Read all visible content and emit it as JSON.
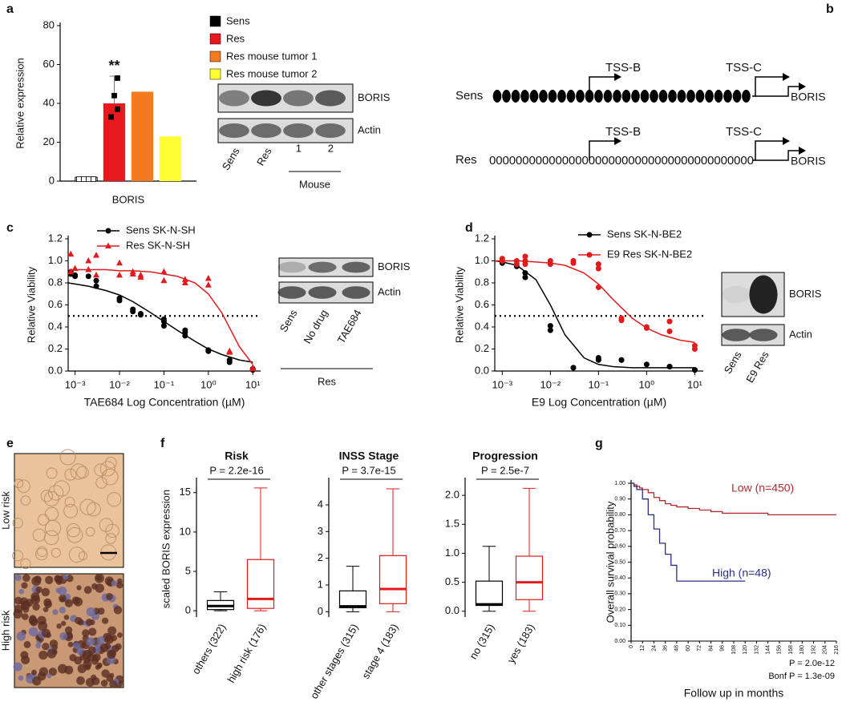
{
  "panel_labels": [
    "a",
    "b",
    "c",
    "d",
    "e",
    "f",
    "g"
  ],
  "chart_data": [
    {
      "type": "bar",
      "ylabel": "Relative expression",
      "categories": [
        "BORIS"
      ],
      "annotation": "**",
      "ylim": [
        0,
        80
      ],
      "yticks": [
        0,
        20,
        40,
        60,
        80
      ],
      "series": [
        {
          "name": "Sens",
          "color": "#000000",
          "fill": "#ffffff",
          "values": [
            2
          ],
          "points": [
            1,
            1,
            1,
            1
          ]
        },
        {
          "name": "Res",
          "color": "#e8191e",
          "fill": "#e8191e",
          "values": [
            40
          ],
          "error": [
            14
          ],
          "points": [
            53,
            44,
            37,
            33
          ]
        },
        {
          "name": "Res mouse tumor 1",
          "color": "#f47a20",
          "fill": "#f47a20",
          "values": [
            46
          ]
        },
        {
          "name": "Res mouse tumor 2",
          "color": "#ffff33",
          "fill": "#ffff33",
          "values": [
            23
          ]
        }
      ]
    },
    {
      "type": "dose-response",
      "xlabel": "TAE684 Log Concentration (µM)",
      "ylabel": "Relative Viability",
      "xscale": "log",
      "xlim": [
        0.0007,
        15
      ],
      "xticks": [
        {
          "value": 0.001,
          "label": "10⁻³"
        },
        {
          "value": 0.01,
          "label": "10⁻²"
        },
        {
          "value": 0.1,
          "label": "10⁻¹"
        },
        {
          "value": 1,
          "label": "10⁰"
        },
        {
          "value": 10,
          "label": "10¹"
        }
      ],
      "ylim": [
        0,
        1.2
      ],
      "yticks": [
        {
          "value": 0,
          "label": "0.0"
        },
        0.2,
        0.4,
        0.6,
        0.8,
        {
          "value": 1,
          "label": "1.0"
        },
        1.2
      ],
      "reference_line": 0.5,
      "series": [
        {
          "name": "Sens SK-N-SH",
          "color": "#000000",
          "marker": "circle",
          "x": [
            0.0008,
            0.0008,
            0.001,
            0.001,
            0.002,
            0.003,
            0.003,
            0.01,
            0.01,
            0.02,
            0.02,
            0.03,
            0.03,
            0.1,
            0.1,
            0.1,
            0.3,
            0.3,
            0.3,
            1,
            1,
            3,
            3,
            10,
            10
          ],
          "values": [
            0.9,
            0.88,
            0.87,
            0.86,
            0.86,
            0.82,
            0.77,
            0.66,
            0.64,
            0.56,
            0.54,
            0.52,
            0.51,
            0.47,
            0.45,
            0.41,
            0.37,
            0.35,
            0.32,
            0.19,
            0.18,
            0.1,
            0.08,
            0.02,
            0.01
          ],
          "fit_x": [
            0.0007,
            0.001,
            0.002,
            0.005,
            0.01,
            0.02,
            0.05,
            0.1,
            0.2,
            0.5,
            1,
            2,
            5,
            10
          ],
          "fit_values": [
            0.8,
            0.79,
            0.77,
            0.73,
            0.69,
            0.63,
            0.53,
            0.45,
            0.37,
            0.27,
            0.2,
            0.15,
            0.1,
            0.08
          ]
        },
        {
          "name": "Res SK-N-SH",
          "color": "#e31a1c",
          "marker": "triangle",
          "x": [
            0.0008,
            0.0008,
            0.001,
            0.002,
            0.002,
            0.003,
            0.003,
            0.01,
            0.01,
            0.02,
            0.02,
            0.03,
            0.03,
            0.1,
            0.1,
            0.3,
            0.3,
            1,
            1,
            3,
            3,
            10,
            10
          ],
          "values": [
            1.06,
            0.9,
            0.93,
            1.0,
            0.92,
            1.05,
            0.87,
            0.98,
            0.87,
            0.9,
            0.88,
            0.87,
            0.85,
            0.9,
            0.82,
            0.83,
            0.8,
            0.84,
            0.78,
            0.18,
            0.17,
            0.03,
            0.02
          ],
          "fit_x": [
            0.0007,
            0.001,
            0.002,
            0.005,
            0.01,
            0.02,
            0.05,
            0.1,
            0.2,
            0.5,
            1,
            2,
            5,
            10
          ],
          "fit_values": [
            0.92,
            0.92,
            0.92,
            0.92,
            0.91,
            0.91,
            0.9,
            0.88,
            0.86,
            0.8,
            0.7,
            0.53,
            0.22,
            0.06
          ]
        }
      ]
    },
    {
      "type": "dose-response",
      "xlabel": "E9 Log Concentration (µM)",
      "ylabel": "Relative Viability",
      "xscale": "log",
      "xlim": [
        0.0007,
        15
      ],
      "xticks": [
        {
          "value": 0.001,
          "label": "10⁻³"
        },
        {
          "value": 0.01,
          "label": "10⁻²"
        },
        {
          "value": 0.1,
          "label": "10⁻¹"
        },
        {
          "value": 1,
          "label": "10⁰"
        },
        {
          "value": 10,
          "label": "10¹"
        }
      ],
      "ylim": [
        0,
        1.2
      ],
      "yticks": [
        {
          "value": 0,
          "label": "0.0"
        },
        0.2,
        0.4,
        0.6,
        0.8,
        {
          "value": 1,
          "label": "1.0"
        },
        1.2
      ],
      "reference_line": 0.5,
      "series": [
        {
          "name": "Sens SK-N-BE2",
          "color": "#000000",
          "marker": "circle",
          "x": [
            0.001,
            0.001,
            0.002,
            0.003,
            0.003,
            0.01,
            0.01,
            0.03,
            0.03,
            0.1,
            0.1,
            0.3,
            0.3,
            1,
            3,
            3,
            10,
            10
          ],
          "values": [
            1.0,
            0.98,
            0.95,
            0.89,
            0.85,
            0.41,
            0.37,
            0.03,
            0.03,
            0.12,
            0.1,
            0.1,
            0.1,
            0.06,
            0.04,
            0.04,
            0.01,
            0.01
          ],
          "fit_x": [
            0.0007,
            0.001,
            0.002,
            0.005,
            0.01,
            0.02,
            0.05,
            0.1,
            0.2,
            0.5,
            1,
            2,
            5,
            10
          ],
          "fit_values": [
            1.0,
            0.99,
            0.96,
            0.83,
            0.6,
            0.33,
            0.12,
            0.06,
            0.04,
            0.03,
            0.03,
            0.03,
            0.03,
            0.03
          ]
        },
        {
          "name": "E9 Res SK-N-BE2",
          "color": "#e31a1c",
          "marker": "circle",
          "x": [
            0.001,
            0.001,
            0.002,
            0.002,
            0.003,
            0.003,
            0.003,
            0.01,
            0.01,
            0.03,
            0.03,
            0.1,
            0.1,
            0.1,
            0.3,
            0.3,
            1,
            1,
            3,
            3,
            10,
            10
          ],
          "values": [
            1.02,
            1.0,
            1.0,
            0.97,
            1.0,
            1.04,
            0.97,
            1.0,
            0.97,
            1.0,
            0.98,
            0.97,
            0.93,
            0.76,
            0.48,
            0.46,
            0.4,
            0.39,
            0.45,
            0.36,
            0.23,
            0.2
          ],
          "fit_x": [
            0.0007,
            0.001,
            0.002,
            0.005,
            0.01,
            0.02,
            0.05,
            0.1,
            0.2,
            0.5,
            1,
            2,
            5,
            10
          ],
          "fit_values": [
            1.0,
            1.0,
            1.0,
            0.99,
            0.98,
            0.96,
            0.89,
            0.79,
            0.65,
            0.48,
            0.39,
            0.33,
            0.28,
            0.26
          ]
        }
      ]
    },
    {
      "type": "box",
      "title": "Risk",
      "annotation": "P = 2.2e-16",
      "ylabel": "scaled BORIS expression",
      "categories": [
        "others (322)",
        "high risk (176)"
      ],
      "colors": [
        "#000000",
        "#e31a1c"
      ],
      "min": [
        0,
        0
      ],
      "q1": [
        0.15,
        0.3
      ],
      "median": [
        0.6,
        1.5
      ],
      "q3": [
        1.3,
        6.5
      ],
      "max": [
        2.4,
        15.6
      ],
      "ylim": [
        -0.8,
        16.5
      ],
      "yticks": [
        0,
        5,
        10,
        15
      ]
    },
    {
      "type": "box",
      "title": "INSS Stage",
      "annotation": "P = 3.7e-15",
      "categories": [
        "other stages (315)",
        "stage 4 (183)"
      ],
      "colors": [
        "#000000",
        "#e31a1c"
      ],
      "min": [
        0,
        0
      ],
      "q1": [
        0.15,
        0.3
      ],
      "median": [
        0.2,
        0.85
      ],
      "q3": [
        0.78,
        2.1
      ],
      "max": [
        1.7,
        4.6
      ],
      "ylim": [
        -0.2,
        4.9
      ],
      "yticks": [
        0,
        1,
        2,
        3,
        4
      ]
    },
    {
      "type": "box",
      "title": "Progression",
      "annotation": "P = 2.5e-7",
      "categories": [
        "no (315)",
        "yes (183)"
      ],
      "colors": [
        "#000000",
        "#e31a1c"
      ],
      "min": [
        0,
        0
      ],
      "q1": [
        0.1,
        0.2
      ],
      "median": [
        0.12,
        0.5
      ],
      "q3": [
        0.52,
        0.95
      ],
      "max": [
        1.12,
        2.12
      ],
      "ylim": [
        -0.1,
        2.25
      ],
      "yticks": [
        {
          "value": 0,
          "label": "0.0"
        },
        0.5,
        {
          "value": 1,
          "label": "1.0"
        },
        1.5,
        {
          "value": 2,
          "label": "2.0"
        }
      ]
    },
    {
      "type": "survival",
      "xlabel": "Follow up in months",
      "ylabel": "Overall survival probability",
      "xlim": [
        0,
        216
      ],
      "xticks": [
        0,
        12,
        24,
        36,
        48,
        60,
        72,
        84,
        96,
        108,
        120,
        132,
        144,
        156,
        168,
        180,
        192,
        204,
        216
      ],
      "ylim": [
        0,
        1
      ],
      "yticks": [
        {
          "value": 0,
          "label": "0.00"
        },
        {
          "value": 0.1,
          "label": "0.10"
        },
        {
          "value": 0.2,
          "label": "0.20"
        },
        {
          "value": 0.3,
          "label": "0.30"
        },
        {
          "value": 0.4,
          "label": "0.40"
        },
        {
          "value": 0.5,
          "label": "0.50"
        },
        {
          "value": 0.6,
          "label": "0.60"
        },
        {
          "value": 0.7,
          "label": "0.70"
        },
        {
          "value": 0.8,
          "label": "0.80"
        },
        {
          "value": 0.9,
          "label": "0.90"
        },
        {
          "value": 1,
          "label": "1.00"
        }
      ],
      "annotations": [
        "P = 2.0e-12",
        "Bonf P = 1.3e-09"
      ],
      "series": [
        {
          "name": "Low (n=450)",
          "color": "#b22a2e",
          "x": [
            0,
            3,
            6,
            9,
            12,
            18,
            24,
            30,
            36,
            42,
            48,
            60,
            72,
            84,
            96,
            108,
            120,
            144,
            168,
            192,
            216
          ],
          "values": [
            1,
            0.99,
            0.98,
            0.97,
            0.96,
            0.94,
            0.91,
            0.89,
            0.87,
            0.86,
            0.85,
            0.84,
            0.83,
            0.82,
            0.81,
            0.81,
            0.81,
            0.8,
            0.8,
            0.8,
            0.8
          ]
        },
        {
          "name": "High (n=48)",
          "color": "#2b2f7f",
          "x": [
            0,
            3,
            6,
            12,
            18,
            24,
            30,
            36,
            42,
            48,
            60,
            72,
            84,
            96,
            108,
            120
          ],
          "values": [
            1,
            0.98,
            0.96,
            0.9,
            0.8,
            0.71,
            0.62,
            0.55,
            0.48,
            0.38,
            0.38,
            0.38,
            0.38,
            0.38,
            0.38,
            0.38
          ]
        }
      ]
    }
  ],
  "blots": [
    {
      "bands": [
        "BORIS",
        "Actin"
      ],
      "lanes": [
        "Sens",
        "Res",
        "1",
        "2"
      ],
      "group": "Mouse"
    },
    {
      "bands": [
        "BORIS",
        "Actin"
      ],
      "lanes": [
        "Sens",
        "No drug",
        "TAE684"
      ],
      "group": "Res"
    },
    {
      "bands": [
        "BORIS",
        "Actin"
      ],
      "lanes": [
        "Sens",
        "E9 Res"
      ]
    }
  ],
  "schematic": {
    "rows": [
      {
        "label": "Sens",
        "promoters": [
          "TSS-B",
          "TSS-C"
        ],
        "gene": "BORIS"
      },
      {
        "label": "Res",
        "sequence": "0000000000000000000000000000000000000000",
        "promoters": [
          "TSS-B",
          "TSS-C"
        ],
        "gene": "BORIS"
      }
    ]
  },
  "images": [
    {
      "label": "Low risk"
    },
    {
      "label": "High risk"
    }
  ]
}
